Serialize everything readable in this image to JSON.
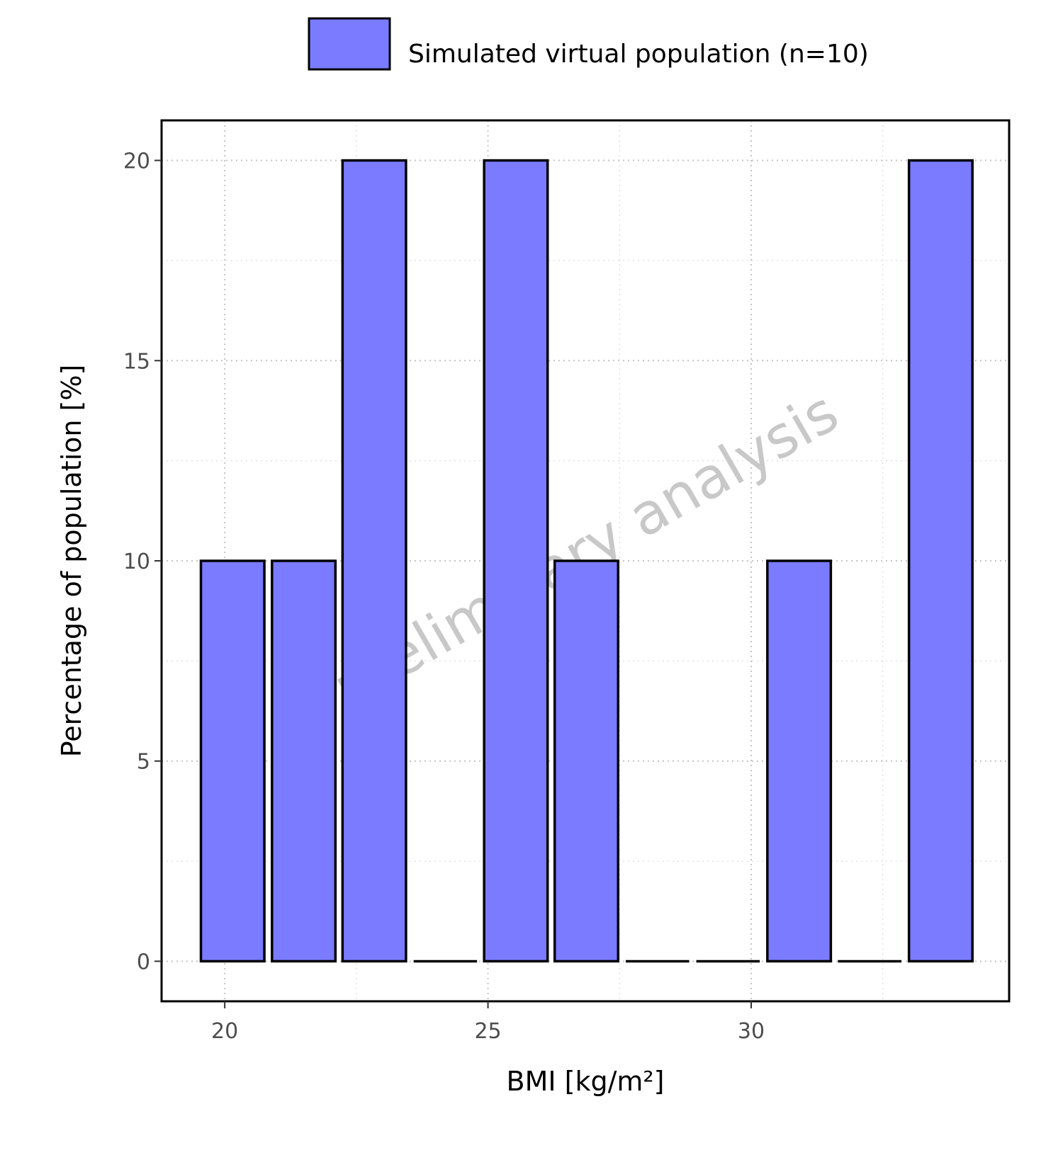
{
  "chart_data": {
    "type": "bar",
    "xlabel": "BMI [kg/m²]",
    "ylabel": "Percentage of population [%]",
    "watermark": "preliminary analysis",
    "xlim": [
      18.8,
      34.9
    ],
    "ylim": [
      -1,
      21
    ],
    "x_ticks": [
      20,
      25,
      30
    ],
    "y_ticks": [
      0,
      5,
      10,
      15,
      20
    ],
    "grid": true,
    "legend_position": "top",
    "bin_width": 1.34,
    "series": [
      {
        "name": "Simulated virtual population (n=10)",
        "color": "#7b7bff",
        "bins": [
          {
            "x": 20.15,
            "value": 10
          },
          {
            "x": 21.5,
            "value": 10
          },
          {
            "x": 22.84,
            "value": 20
          },
          {
            "x": 24.19,
            "value": 0
          },
          {
            "x": 25.53,
            "value": 20
          },
          {
            "x": 26.87,
            "value": 10
          },
          {
            "x": 28.22,
            "value": 0
          },
          {
            "x": 29.56,
            "value": 0
          },
          {
            "x": 30.91,
            "value": 10
          },
          {
            "x": 32.25,
            "value": 0
          },
          {
            "x": 33.6,
            "value": 20
          }
        ]
      }
    ]
  }
}
